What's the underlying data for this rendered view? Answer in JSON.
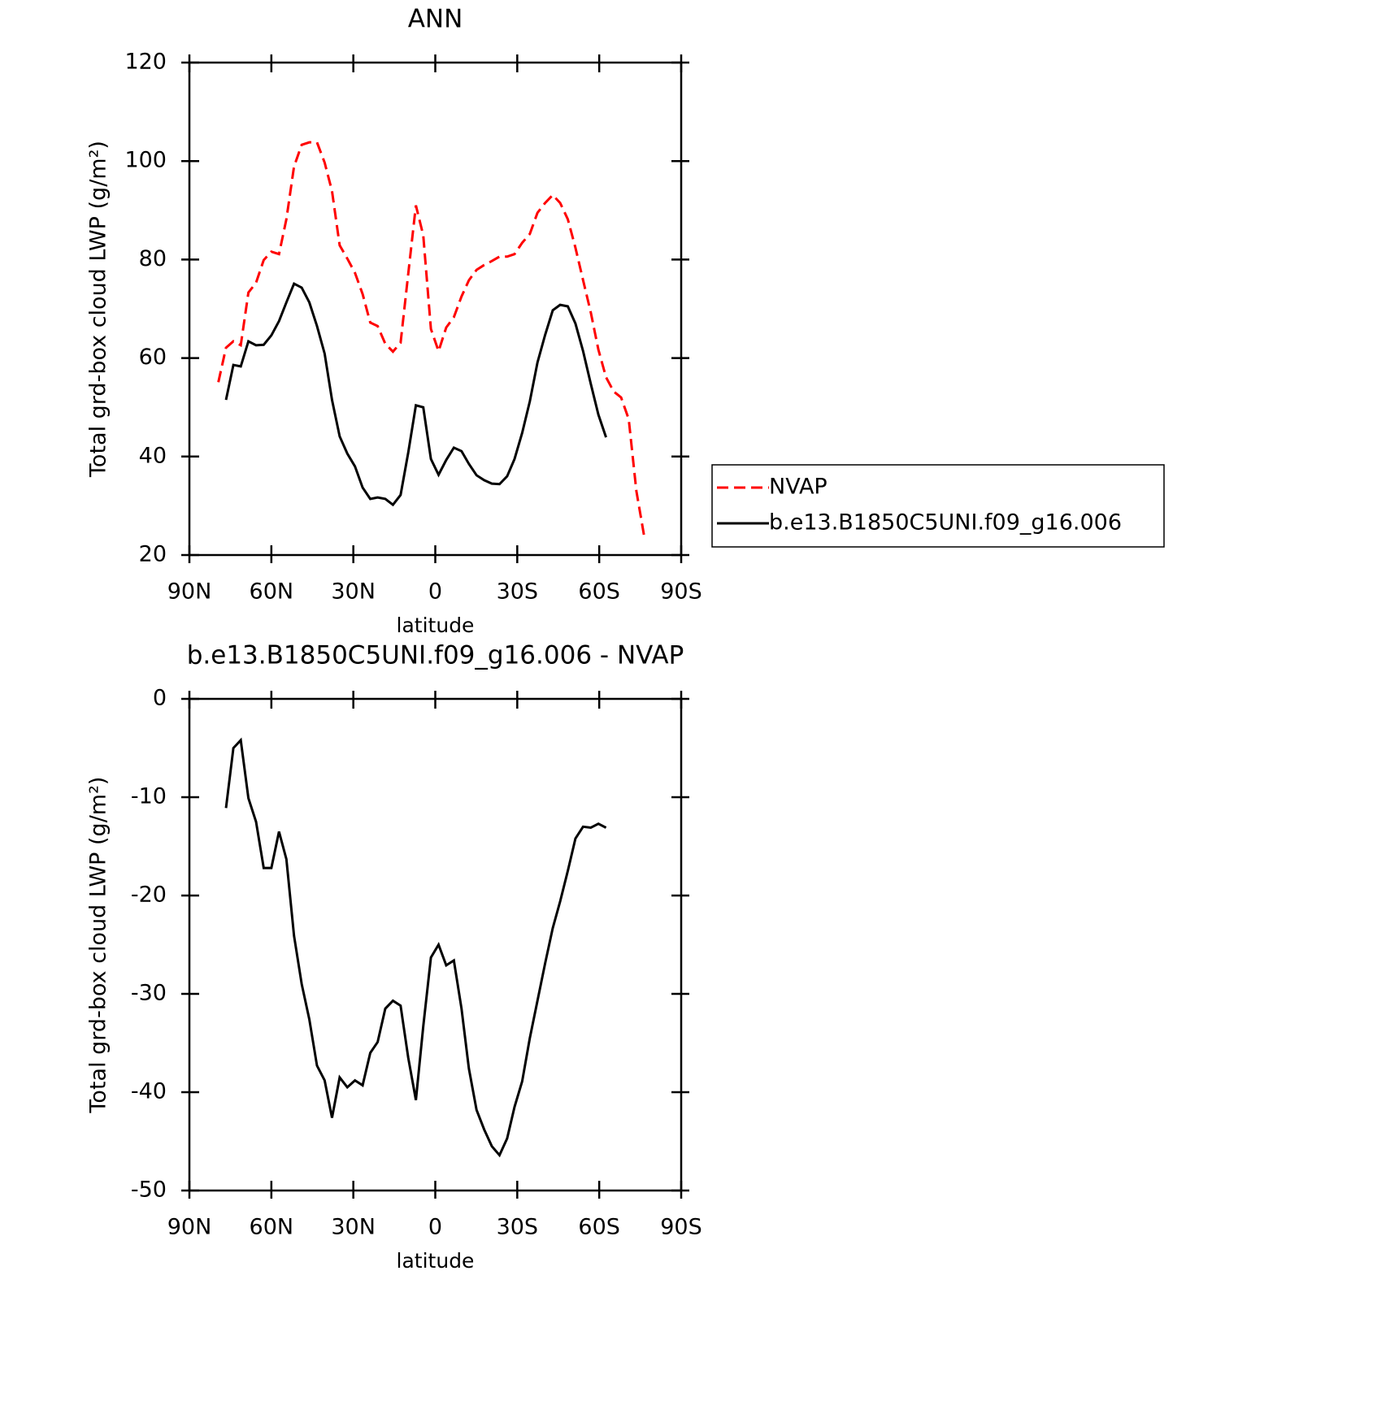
{
  "chart_data": [
    {
      "type": "line",
      "title": "ANN",
      "xlabel": "latitude",
      "ylabel": "Total grd-box cloud LWP (g/m²)",
      "xlim": [
        90,
        -90
      ],
      "xticks": [
        {
          "value": 90,
          "label": "90N"
        },
        {
          "value": 60,
          "label": "60N"
        },
        {
          "value": 30,
          "label": "30N"
        },
        0,
        {
          "value": -30,
          "label": "30S"
        },
        {
          "value": -60,
          "label": "60S"
        },
        {
          "value": -90,
          "label": "90S"
        }
      ],
      "ylim": [
        20,
        120
      ],
      "yticks": [
        20,
        40,
        60,
        80,
        100,
        120
      ],
      "legend": "right",
      "series": [
        {
          "name": "NVAP",
          "color": "#ff0000",
          "dash": true,
          "x": [
            79.4,
            76.6,
            73.9,
            71.2,
            68.4,
            65.6,
            62.8,
            60.0,
            57.2,
            54.5,
            51.7,
            48.9,
            46.1,
            43.3,
            40.5,
            37.8,
            35.0,
            32.2,
            29.4,
            26.6,
            23.8,
            21.1,
            18.3,
            15.5,
            12.7,
            9.9,
            7.1,
            4.4,
            1.6,
            -1.2,
            -4.0,
            -6.8,
            -9.6,
            -12.3,
            -15.1,
            -17.9,
            -20.7,
            -23.5,
            -26.3,
            -29.0,
            -31.8,
            -34.6,
            -37.4,
            -40.2,
            -43.0,
            -45.7,
            -48.5,
            -51.3,
            -54.1,
            -56.9,
            -59.7,
            -62.5,
            -65.3,
            -68.0,
            -70.8,
            -73.6,
            -76.4
          ],
          "values": [
            55.1,
            62.1,
            63.4,
            62.6,
            73.3,
            75.3,
            79.9,
            81.6,
            81.1,
            88.2,
            98.9,
            103.3,
            103.8,
            103.8,
            99.7,
            93.9,
            82.9,
            80.2,
            77.3,
            73.0,
            67.2,
            66.5,
            62.9,
            61.3,
            63.1,
            77.1,
            91.0,
            84.9,
            65.9,
            61.4,
            66.2,
            68.3,
            72.5,
            75.8,
            77.9,
            78.9,
            79.7,
            80.6,
            80.6,
            81.1,
            83.4,
            85.2,
            89.5,
            91.5,
            93.1,
            91.5,
            88.2,
            82.4,
            75.8,
            69.3,
            61.7,
            56.1,
            53.2,
            52.0,
            47.6,
            33.0,
            24.0
          ]
        },
        {
          "name": "b.e13.B1850C5UNI.f09_g16.006",
          "color": "#000000",
          "dash": false,
          "x": [
            76.6,
            73.9,
            71.2,
            68.4,
            65.6,
            62.8,
            60.0,
            57.2,
            54.5,
            51.7,
            48.9,
            46.1,
            43.3,
            40.5,
            37.8,
            35.0,
            32.2,
            29.4,
            26.6,
            23.8,
            21.1,
            18.3,
            15.5,
            12.7,
            9.9,
            7.1,
            4.4,
            1.6,
            -1.2,
            -4.0,
            -6.8,
            -9.6,
            -12.3,
            -15.1,
            -17.9,
            -20.7,
            -23.5,
            -26.3,
            -29.0,
            -31.8,
            -34.6,
            -37.4,
            -40.2,
            -43.0,
            -45.7,
            -48.5,
            -51.3,
            -54.1,
            -56.9,
            -59.7,
            -62.5
          ],
          "values": [
            51.5,
            58.6,
            58.3,
            63.4,
            62.6,
            62.7,
            64.6,
            67.5,
            71.3,
            75.1,
            74.3,
            71.3,
            66.5,
            60.9,
            51.5,
            44.1,
            40.6,
            38.0,
            33.7,
            31.4,
            31.7,
            31.4,
            30.2,
            32.2,
            40.8,
            50.4,
            50.0,
            39.5,
            36.3,
            39.3,
            41.8,
            41.1,
            38.5,
            36.2,
            35.2,
            34.5,
            34.4,
            36.0,
            39.5,
            44.8,
            51.2,
            59.1,
            64.7,
            69.7,
            70.8,
            70.5,
            67.0,
            61.4,
            54.8,
            48.5,
            43.9
          ]
        }
      ]
    },
    {
      "type": "line",
      "title": "b.e13.B1850C5UNI.f09_g16.006 - NVAP",
      "xlabel": "latitude",
      "ylabel": "Total grd-box cloud LWP (g/m²)",
      "xlim": [
        90,
        -90
      ],
      "xticks": [
        {
          "value": 90,
          "label": "90N"
        },
        {
          "value": 60,
          "label": "60N"
        },
        {
          "value": 30,
          "label": "30N"
        },
        0,
        {
          "value": -30,
          "label": "30S"
        },
        {
          "value": -60,
          "label": "60S"
        },
        {
          "value": -90,
          "label": "90S"
        }
      ],
      "ylim": [
        -50,
        0
      ],
      "yticks": [
        -50,
        -40,
        -30,
        -20,
        -10,
        0
      ],
      "series": [
        {
          "color": "#000000",
          "dash": false,
          "x": [
            76.6,
            73.9,
            71.2,
            68.4,
            65.6,
            62.8,
            60.0,
            57.2,
            54.5,
            51.7,
            48.9,
            46.1,
            43.3,
            40.5,
            37.8,
            35.0,
            32.2,
            29.4,
            26.6,
            23.8,
            21.1,
            18.3,
            15.5,
            12.7,
            9.9,
            7.1,
            4.4,
            1.6,
            -1.2,
            -4.0,
            -6.8,
            -9.6,
            -12.3,
            -15.1,
            -17.9,
            -20.7,
            -23.5,
            -26.3,
            -29.0,
            -31.8,
            -34.6,
            -37.4,
            -40.2,
            -43.0,
            -45.7,
            -48.5,
            -51.3,
            -54.1,
            -56.9,
            -59.7,
            -62.5
          ],
          "values": [
            -11.1,
            -5.0,
            -4.2,
            -10.1,
            -12.5,
            -17.2,
            -17.2,
            -13.5,
            -16.3,
            -24.1,
            -29.0,
            -32.6,
            -37.3,
            -38.8,
            -42.6,
            -38.5,
            -39.5,
            -38.8,
            -39.3,
            -36.0,
            -34.9,
            -31.5,
            -30.7,
            -31.2,
            -36.5,
            -40.8,
            -33.3,
            -26.3,
            -25.0,
            -27.1,
            -26.6,
            -31.5,
            -37.6,
            -41.8,
            -43.8,
            -45.5,
            -46.4,
            -44.7,
            -41.5,
            -38.9,
            -34.5,
            -30.7,
            -26.9,
            -23.3,
            -20.6,
            -17.5,
            -14.2,
            -13.0,
            -13.1,
            -12.7,
            -13.1
          ]
        }
      ]
    }
  ]
}
